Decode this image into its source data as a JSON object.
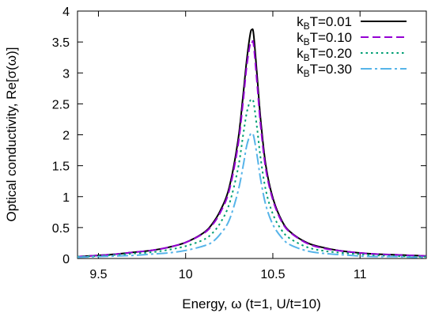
{
  "chart_data": {
    "type": "line",
    "xlabel": "Energy, ω (t=1, U/t=10)",
    "ylabel": "Optical conductivity, Re[σ(ω)]",
    "xlim": [
      9.38,
      11.38
    ],
    "ylim": [
      0,
      4
    ],
    "xticks": [
      9.5,
      10,
      10.5,
      11
    ],
    "xtick_labels": [
      "9.5",
      "10",
      "10.5",
      "11"
    ],
    "yticks": [
      0,
      0.5,
      1,
      1.5,
      2,
      2.5,
      3,
      3.5,
      4
    ],
    "ytick_labels": [
      "0",
      "0.5",
      "1",
      "1.5",
      "2",
      "2.5",
      "3",
      "3.5",
      "4"
    ],
    "grid": false,
    "legend_position": "top-right",
    "x": [
      9.38,
      9.5,
      9.6,
      9.7,
      9.8,
      9.9,
      10.0,
      10.1,
      10.15,
      10.2,
      10.25,
      10.3,
      10.33,
      10.35,
      10.37,
      10.38,
      10.39,
      10.41,
      10.43,
      10.46,
      10.5,
      10.55,
      10.6,
      10.7,
      10.8,
      10.9,
      11.0,
      11.1,
      11.2,
      11.3,
      11.38
    ],
    "series": [
      {
        "name_main": "k",
        "name_sub": "B",
        "name_rest": "T=0.01",
        "color": "#000000",
        "dash": "",
        "values": [
          0.03,
          0.05,
          0.07,
          0.1,
          0.13,
          0.18,
          0.26,
          0.41,
          0.55,
          0.78,
          1.15,
          1.9,
          2.65,
          3.2,
          3.62,
          3.7,
          3.62,
          2.95,
          2.25,
          1.5,
          0.98,
          0.62,
          0.43,
          0.25,
          0.17,
          0.12,
          0.09,
          0.07,
          0.06,
          0.05,
          0.04
        ]
      },
      {
        "name_main": "k",
        "name_sub": "B",
        "name_rest": "T=0.10",
        "color": "#9400d3",
        "dash": "10,5",
        "values": [
          0.03,
          0.05,
          0.07,
          0.1,
          0.13,
          0.18,
          0.26,
          0.4,
          0.53,
          0.75,
          1.1,
          1.82,
          2.55,
          3.1,
          3.47,
          3.5,
          3.45,
          2.82,
          2.15,
          1.44,
          0.95,
          0.6,
          0.42,
          0.24,
          0.16,
          0.12,
          0.09,
          0.07,
          0.06,
          0.05,
          0.04
        ]
      },
      {
        "name_main": "k",
        "name_sub": "B",
        "name_rest": "T=0.20",
        "color": "#009e73",
        "dash": "2.5,4",
        "values": [
          0.03,
          0.04,
          0.06,
          0.08,
          0.1,
          0.14,
          0.2,
          0.3,
          0.4,
          0.58,
          0.88,
          1.45,
          2.0,
          2.35,
          2.55,
          2.56,
          2.52,
          2.1,
          1.62,
          1.1,
          0.72,
          0.46,
          0.32,
          0.18,
          0.12,
          0.09,
          0.07,
          0.05,
          0.04,
          0.03,
          0.03
        ]
      },
      {
        "name_main": "k",
        "name_sub": "B",
        "name_rest": "T=0.30",
        "color": "#56b4e9",
        "dash": "14,4,3,4",
        "values": [
          0.02,
          0.03,
          0.04,
          0.05,
          0.07,
          0.09,
          0.13,
          0.2,
          0.26,
          0.4,
          0.62,
          1.08,
          1.5,
          1.82,
          2.0,
          2.02,
          1.98,
          1.66,
          1.28,
          0.86,
          0.55,
          0.34,
          0.22,
          0.12,
          0.08,
          0.06,
          0.04,
          0.03,
          0.03,
          0.02,
          0.02
        ]
      }
    ]
  }
}
